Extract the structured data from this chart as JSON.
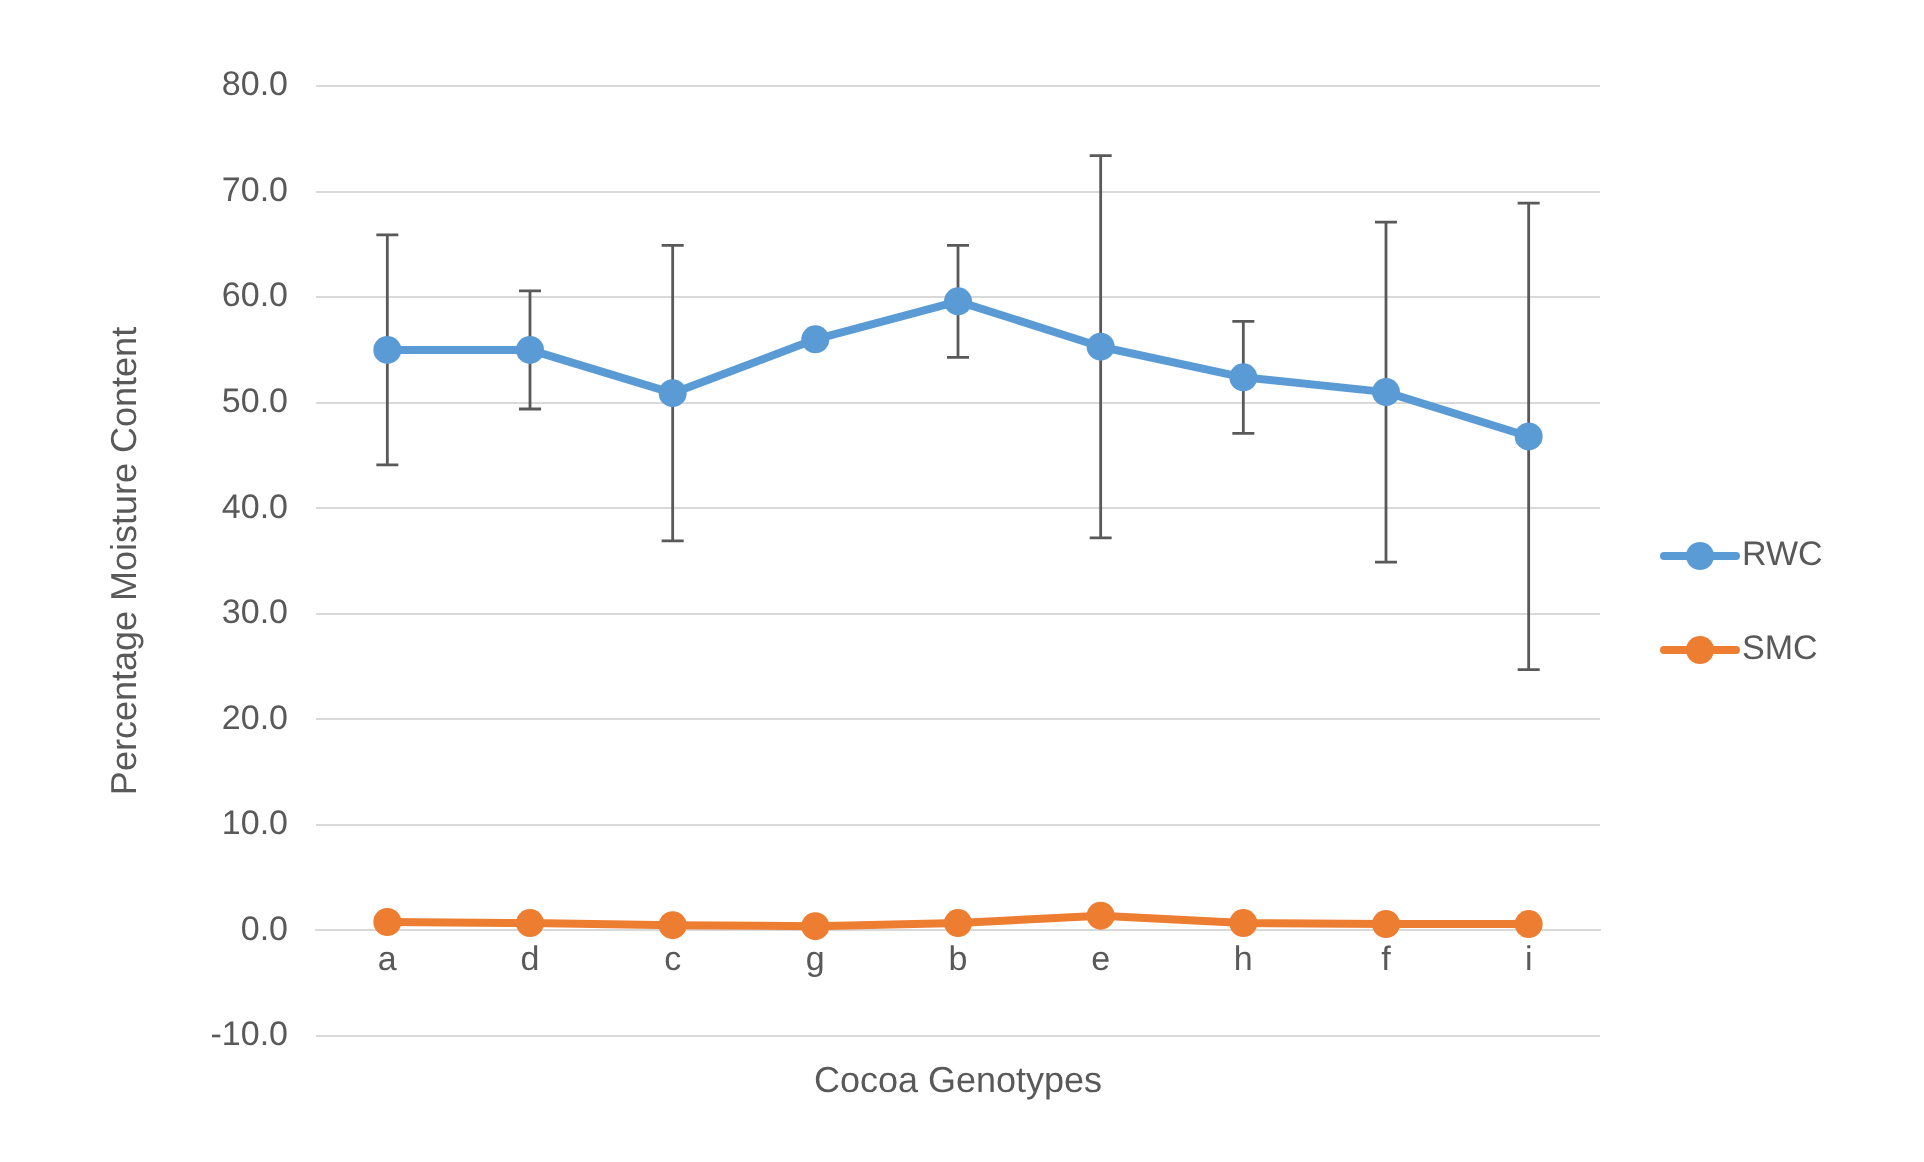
{
  "chart_data": {
    "type": "line",
    "xlabel": "Cocoa Genotypes",
    "ylabel": "Percentage Moisture Content",
    "categories": [
      "a",
      "d",
      "c",
      "g",
      "b",
      "e",
      "h",
      "f",
      "i"
    ],
    "series": [
      {
        "name": "RWC",
        "color": "#5b9bd5",
        "values": [
          55.0,
          55.0,
          50.9,
          56.0,
          59.6,
          55.3,
          52.4,
          51.0,
          46.8
        ],
        "errors": [
          10.9,
          5.6,
          14.0,
          null,
          5.3,
          18.1,
          5.3,
          16.1,
          22.1
        ]
      },
      {
        "name": "SMC",
        "color": "#ed7d31",
        "values": [
          0.8,
          0.7,
          0.5,
          0.4,
          0.7,
          1.4,
          0.7,
          0.6,
          0.6
        ]
      }
    ],
    "ylim": [
      -10,
      80
    ],
    "yticks": [
      {
        "value": -10,
        "label": "-10.0"
      },
      {
        "value": 0,
        "label": "0.0"
      },
      {
        "value": 10,
        "label": "10.0"
      },
      {
        "value": 20,
        "label": "20.0"
      },
      {
        "value": 30,
        "label": "30.0"
      },
      {
        "value": 40,
        "label": "40.0"
      },
      {
        "value": 50,
        "label": "50.0"
      },
      {
        "value": 60,
        "label": "60.0"
      },
      {
        "value": 70,
        "label": "70.0"
      },
      {
        "value": 80,
        "label": "80.0"
      }
    ],
    "grid": "y",
    "legend": "right",
    "marker": "circle",
    "line_style": "solid"
  }
}
